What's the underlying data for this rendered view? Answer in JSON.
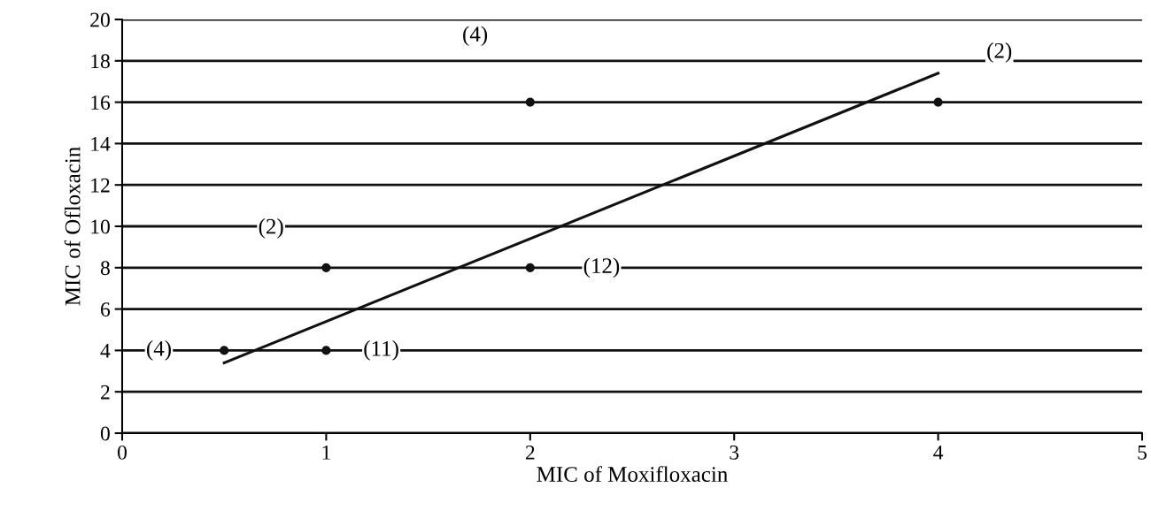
{
  "chart_data": {
    "type": "scatter",
    "xlabel": "MIC of Moxifloxacin",
    "ylabel": "MIC of Ofloxacin",
    "xlim": [
      0,
      5
    ],
    "xticks": [
      0,
      1,
      2,
      3,
      4,
      5
    ],
    "ylim": [
      0,
      20
    ],
    "yticks": [
      0,
      2,
      4,
      6,
      8,
      10,
      12,
      14,
      16,
      18,
      20
    ],
    "grid": "y",
    "series": [
      {
        "color": "#111111",
        "marker": "circle",
        "x": [
          0.5,
          1,
          1,
          2,
          2,
          4
        ],
        "values": [
          4,
          4,
          8,
          8,
          16,
          16
        ]
      },
      {
        "type": "line",
        "color": "#111111",
        "x": [
          0.5,
          4
        ],
        "values": [
          3.4,
          17.4
        ],
        "line_style": "solid"
      }
    ],
    "annotations": [
      "(4)",
      "(11)",
      "(2)",
      "(12)",
      "(4)",
      "(2)"
    ]
  }
}
